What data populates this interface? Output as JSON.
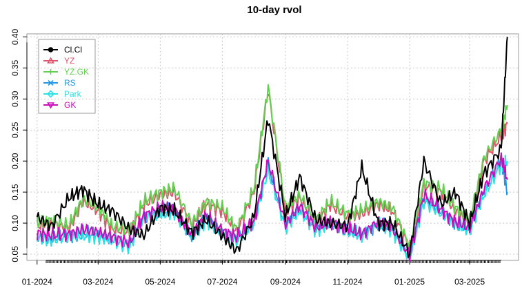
{
  "chart_data": {
    "type": "line",
    "title": "10-day rvol",
    "xlabel": "",
    "ylabel": "",
    "ylim": [
      0.04,
      0.405
    ],
    "yticks": [
      0.05,
      0.1,
      0.15,
      0.2,
      0.25,
      0.3,
      0.35,
      0.4
    ],
    "ytick_labels": [
      "0.05",
      "0.10",
      "0.15",
      "0.20",
      "0.25",
      "0.30",
      "0.35",
      "0.40"
    ],
    "xlim": [
      "2023-12-22",
      "2025-04-18"
    ],
    "xticks": [
      "2024-01-01",
      "2024-03-01",
      "2024-05-01",
      "2024-07-01",
      "2024-09-01",
      "2024-11-01",
      "2025-01-01",
      "2025-03-01"
    ],
    "xtick_labels": [
      "01-2024",
      "03-2024",
      "05-2024",
      "07-2024",
      "09-2024",
      "11-2024",
      "01-2025",
      "03-2025"
    ],
    "grid": true,
    "legend_position": "top-left",
    "x": [
      "2024-01-01",
      "2024-01-15",
      "2024-02-01",
      "2024-02-15",
      "2024-03-01",
      "2024-03-15",
      "2024-04-01",
      "2024-04-15",
      "2024-05-01",
      "2024-05-15",
      "2024-06-01",
      "2024-06-15",
      "2024-07-01",
      "2024-07-15",
      "2024-08-01",
      "2024-08-15",
      "2024-09-01",
      "2024-09-15",
      "2024-10-01",
      "2024-10-15",
      "2024-11-01",
      "2024-11-15",
      "2024-12-01",
      "2024-12-15",
      "2025-01-01",
      "2025-01-15",
      "2025-02-01",
      "2025-02-15",
      "2025-03-01",
      "2025-03-15",
      "2025-04-01",
      "2025-04-07"
    ],
    "series": [
      {
        "name": "Cl.Cl",
        "color": "#000000",
        "marker": "circle",
        "values": [
          0.11,
          0.095,
          0.14,
          0.155,
          0.13,
          0.12,
          0.09,
          0.08,
          0.125,
          0.12,
          0.085,
          0.105,
          0.08,
          0.055,
          0.11,
          0.27,
          0.11,
          0.175,
          0.105,
          0.1,
          0.095,
          0.19,
          0.1,
          0.1,
          0.05,
          0.2,
          0.13,
          0.15,
          0.1,
          0.18,
          0.22,
          0.4
        ]
      },
      {
        "name": "YZ",
        "color": "#DF536B",
        "marker": "triangle",
        "values": [
          0.095,
          0.1,
          0.09,
          0.135,
          0.12,
          0.09,
          0.085,
          0.13,
          0.145,
          0.15,
          0.095,
          0.13,
          0.12,
          0.085,
          0.15,
          0.315,
          0.12,
          0.14,
          0.1,
          0.13,
          0.11,
          0.115,
          0.13,
          0.12,
          0.06,
          0.16,
          0.15,
          0.12,
          0.1,
          0.2,
          0.24,
          0.26
        ]
      },
      {
        "name": "YZ.GK",
        "color": "#61D04F",
        "marker": "plus",
        "values": [
          0.1,
          0.105,
          0.095,
          0.14,
          0.125,
          0.095,
          0.09,
          0.135,
          0.15,
          0.155,
          0.1,
          0.135,
          0.125,
          0.09,
          0.155,
          0.32,
          0.125,
          0.145,
          0.105,
          0.135,
          0.115,
          0.12,
          0.135,
          0.125,
          0.062,
          0.165,
          0.155,
          0.125,
          0.105,
          0.205,
          0.25,
          0.29
        ]
      },
      {
        "name": "RS",
        "color": "#2297E6",
        "marker": "x",
        "values": [
          0.08,
          0.075,
          0.08,
          0.085,
          0.08,
          0.075,
          0.065,
          0.11,
          0.12,
          0.12,
          0.08,
          0.11,
          0.085,
          0.075,
          0.1,
          0.195,
          0.095,
          0.125,
          0.09,
          0.1,
          0.09,
          0.08,
          0.1,
          0.09,
          0.045,
          0.14,
          0.12,
          0.1,
          0.09,
          0.15,
          0.2,
          0.15
        ]
      },
      {
        "name": "Park",
        "color": "#28E2E5",
        "marker": "diamond",
        "values": [
          0.078,
          0.072,
          0.078,
          0.08,
          0.078,
          0.072,
          0.062,
          0.108,
          0.115,
          0.115,
          0.078,
          0.105,
          0.082,
          0.072,
          0.098,
          0.185,
          0.092,
          0.12,
          0.088,
          0.098,
          0.088,
          0.078,
          0.098,
          0.088,
          0.043,
          0.135,
          0.115,
          0.098,
          0.088,
          0.145,
          0.195,
          0.2
        ]
      },
      {
        "name": "GK",
        "color": "#CD0BBC",
        "marker": "triangle-down",
        "values": [
          0.085,
          0.08,
          0.082,
          0.09,
          0.085,
          0.078,
          0.068,
          0.112,
          0.125,
          0.122,
          0.082,
          0.112,
          0.088,
          0.078,
          0.102,
          0.2,
          0.098,
          0.128,
          0.092,
          0.102,
          0.092,
          0.082,
          0.102,
          0.092,
          0.048,
          0.145,
          0.122,
          0.102,
          0.092,
          0.155,
          0.205,
          0.17
        ]
      }
    ]
  }
}
